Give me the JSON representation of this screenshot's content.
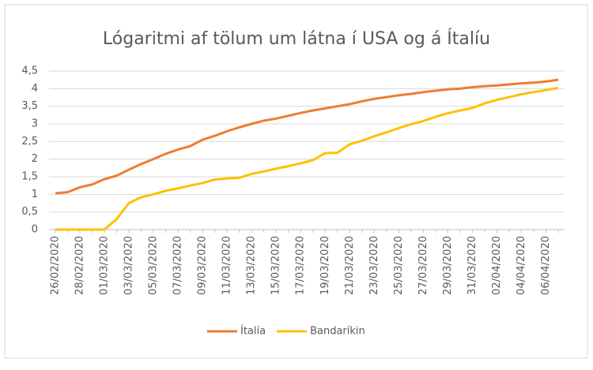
{
  "chart_data": {
    "type": "line",
    "title": "Lógaritmi af tölum um látna í USA og á Ítalíu",
    "categories": [
      "26/02/2020",
      null,
      "28/02/2020",
      null,
      "01/03/2020",
      null,
      "03/03/2020",
      null,
      "05/03/2020",
      null,
      "07/03/2020",
      null,
      "09/03/2020",
      null,
      "11/03/2020",
      null,
      "13/03/2020",
      null,
      "15/03/2020",
      null,
      "17/03/2020",
      null,
      "19/03/2020",
      null,
      "21/03/2020",
      null,
      "23/03/2020",
      null,
      "25/03/2020",
      null,
      "27/03/2020",
      null,
      "29/03/2020",
      null,
      "31/03/2020",
      null,
      "02/04/2020",
      null,
      "04/04/2020",
      null,
      "06/04/2020",
      null
    ],
    "series": [
      {
        "name": "Ítalía",
        "color": "#ED7D31",
        "values": [
          1.03,
          1.06,
          1.2,
          1.28,
          1.43,
          1.53,
          1.7,
          1.86,
          2.0,
          2.15,
          2.27,
          2.37,
          2.55,
          2.66,
          2.79,
          2.9,
          3.0,
          3.09,
          3.15,
          3.23,
          3.31,
          3.38,
          3.44,
          3.5,
          3.56,
          3.64,
          3.71,
          3.76,
          3.81,
          3.85,
          3.9,
          3.94,
          3.98,
          4.0,
          4.04,
          4.07,
          4.09,
          4.12,
          4.15,
          4.17,
          4.2,
          4.25
        ]
      },
      {
        "name": "Bandaríkin",
        "color": "#FFC000",
        "values": [
          0,
          0,
          0,
          0,
          0,
          0.3,
          0.75,
          0.92,
          1.0,
          1.1,
          1.17,
          1.25,
          1.32,
          1.42,
          1.45,
          1.47,
          1.58,
          1.65,
          1.73,
          1.8,
          1.88,
          1.97,
          2.17,
          2.18,
          2.42,
          2.52,
          2.65,
          2.76,
          2.88,
          2.99,
          3.08,
          3.2,
          3.3,
          3.38,
          3.45,
          3.58,
          3.68,
          3.76,
          3.84,
          3.9,
          3.96,
          4.02
        ]
      }
    ],
    "ylim": [
      0,
      4.5
    ],
    "yticks": [
      0,
      {
        "value": 0.5,
        "label": "0,5"
      },
      1,
      {
        "value": 1.5,
        "label": "1,5"
      },
      2,
      {
        "value": 2.5,
        "label": "2,5"
      },
      3,
      {
        "value": 3.5,
        "label": "3,5"
      },
      4,
      {
        "value": 4.5,
        "label": "4,5"
      }
    ],
    "grid": true
  }
}
